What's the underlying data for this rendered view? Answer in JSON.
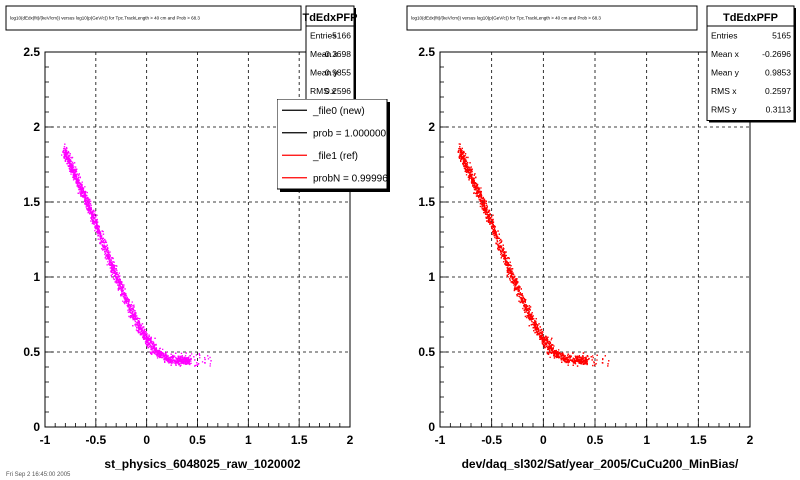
{
  "chart_data": [
    {
      "type": "scatter",
      "title": "log10(dEdx(fit)/(keV/cm)) versus log10(p(GeV/c)) for Tpc.TrackLength > 40 cm and Prob > 68.3",
      "xlabel": "st_physics_6048025_raw_1020002",
      "ylabel": "",
      "xlim": [
        -1,
        2
      ],
      "ylim": [
        0,
        2.5
      ],
      "xticks": [
        "-1",
        "-0.5",
        "0",
        "0.5",
        "1",
        "1.5",
        "2"
      ],
      "yticks": [
        "0",
        "0.5",
        "1",
        "1.5",
        "2",
        "2.5"
      ],
      "grid": true,
      "series_color": "#ff00ff",
      "band": [
        [
          -0.82,
          1.85
        ],
        [
          -0.7,
          1.67
        ],
        [
          -0.6,
          1.52
        ],
        [
          -0.5,
          1.35
        ],
        [
          -0.4,
          1.17
        ],
        [
          -0.3,
          1.0
        ],
        [
          -0.2,
          0.84
        ],
        [
          -0.1,
          0.7
        ],
        [
          0.0,
          0.58
        ],
        [
          0.1,
          0.5
        ],
        [
          0.2,
          0.46
        ],
        [
          0.3,
          0.45
        ],
        [
          0.4,
          0.45
        ]
      ],
      "stats": {
        "name": "TdEdxPFP",
        "rows": [
          {
            "label": "Entries",
            "value": "5166"
          },
          {
            "label": "Mean x",
            "value": "-0.2698"
          },
          {
            "label": "Mean y",
            "value": "0.9855"
          },
          {
            "label": "RMS x",
            "value": "0.2596"
          }
        ]
      },
      "legend": {
        "placement": "top-right",
        "entries": [
          {
            "label": "_file0 (new)",
            "color": "#000000"
          },
          {
            "label": "prob = 1.000000",
            "color": "#000000"
          },
          {
            "label": "_file1 (ref)",
            "color": "#ff0000"
          },
          {
            "label": "probN = 0.99996",
            "color": "#ff0000"
          }
        ]
      }
    },
    {
      "type": "scatter",
      "title": "log10(dEdx(fit)/(keV/cm)) versus log10(p(GeV/c)) for Tpc.TrackLength > 40 cm and Prob > 68.3",
      "xlabel": "dev/daq_sl302/Sat/year_2005/CuCu200_MinBias/",
      "ylabel": "",
      "xlim": [
        -1,
        2
      ],
      "ylim": [
        0,
        2.5
      ],
      "xticks": [
        "-1",
        "-0.5",
        "0",
        "0.5",
        "1",
        "1.5",
        "2"
      ],
      "yticks": [
        "0",
        "0.5",
        "1",
        "1.5",
        "2",
        "2.5"
      ],
      "grid": true,
      "series_color": "#ff0000",
      "band": [
        [
          -0.82,
          1.85
        ],
        [
          -0.7,
          1.67
        ],
        [
          -0.6,
          1.52
        ],
        [
          -0.5,
          1.35
        ],
        [
          -0.4,
          1.17
        ],
        [
          -0.3,
          1.0
        ],
        [
          -0.2,
          0.84
        ],
        [
          -0.1,
          0.7
        ],
        [
          0.0,
          0.58
        ],
        [
          0.1,
          0.5
        ],
        [
          0.2,
          0.46
        ],
        [
          0.3,
          0.45
        ],
        [
          0.4,
          0.45
        ]
      ],
      "stats": {
        "name": "TdEdxPFP",
        "rows": [
          {
            "label": "Entries",
            "value": "5165"
          },
          {
            "label": "Mean x",
            "value": "-0.2696"
          },
          {
            "label": "Mean y",
            "value": "0.9853"
          },
          {
            "label": "RMS x",
            "value": "0.2597"
          },
          {
            "label": "RMS y",
            "value": "0.3113"
          }
        ]
      }
    }
  ],
  "footer_note": "Fri Sep 2 16:45:00 2005"
}
